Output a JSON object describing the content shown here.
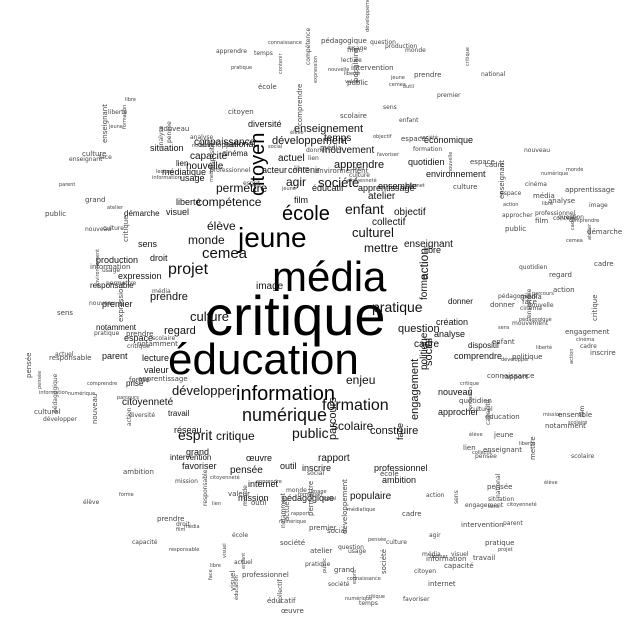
{
  "cloud": {
    "words": [
      "critique",
      "éducation",
      "média",
      "jeune",
      "citoyen",
      "information",
      "école",
      "numérique",
      "formation",
      "projet",
      "cemea",
      "public",
      "pratique",
      "culture",
      "société",
      "enfant",
      "culturel",
      "mettre",
      "esprit",
      "critique",
      "développer",
      "enjeu",
      "permettre",
      "compétence",
      "élève",
      "monde",
      "scolaire",
      "action",
      "social",
      "forme",
      "engagement",
      "construire",
      "agir",
      "apprendre",
      "mouvement",
      "enseignement",
      "développement",
      "actuel",
      "connaissance",
      "temps",
      "parcours",
      "capacité",
      "nouvelle",
      "image",
      "question",
      "cadre",
      "enseignant",
      "atelier",
      "collectif",
      "objectif",
      "ensemble",
      "prendre",
      "regard",
      "lecture",
      "valeur",
      "parent",
      "espace",
      "prise",
      "premier",
      "production",
      "expression",
      "droit",
      "responsable",
      "notamment",
      "sens",
      "visuel",
      "démarche",
      "réseau",
      "travail",
      "grand",
      "favoriser",
      "œuvre",
      "pensée",
      "outil",
      "rapport",
      "inscrire",
      "intervention",
      "internet",
      "mission",
      "pédagogique",
      "populaire",
      "ambition",
      "professionnel",
      "approcher",
      "nouveau",
      "comprendre",
      "politique",
      "quotidien",
      "environnement",
      "économique",
      "apprentissage",
      "liberté",
      "situation",
      "national",
      "diversité",
      "cinéma",
      "médiatique",
      "usage",
      "citoyenneté",
      "lien",
      "création",
      "analyse",
      "donner",
      "dispositif",
      "face",
      "éducatif",
      "film",
      "contenir",
      "libre",
      "acteur"
    ]
  }
}
